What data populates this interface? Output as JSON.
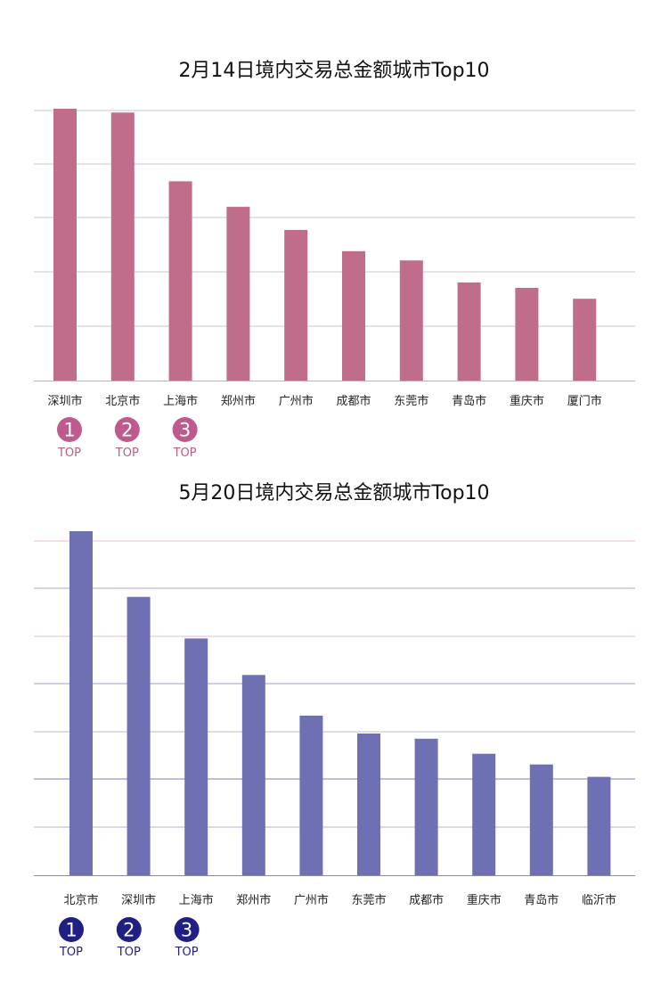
{
  "chart_data": [
    {
      "type": "bar",
      "title": "2月14日境内交易总金额城市Top10",
      "categories": [
        "深圳市",
        "北京市",
        "上海市",
        "郑州市",
        "广州市",
        "成都市",
        "东莞市",
        "青岛市",
        "重庆市",
        "厦门市"
      ],
      "values": [
        100,
        98.6,
        73.3,
        63.9,
        55.4,
        47.6,
        44.2,
        36.1,
        34.1,
        30.1
      ],
      "ylim": [
        0,
        100
      ],
      "grid": true,
      "color": "#bf6d8b",
      "top_badges": [
        {
          "rank": "1",
          "label": "TOP"
        },
        {
          "rank": "2",
          "label": "TOP"
        },
        {
          "rank": "3",
          "label": "TOP"
        }
      ],
      "badge_color": "#bf5a8c"
    },
    {
      "type": "bar",
      "title": "5月20日境内交易总金额城市Top10",
      "categories": [
        "北京市",
        "深圳市",
        "上海市",
        "郑州市",
        "广州市",
        "东莞市",
        "成都市",
        "重庆市",
        "青岛市",
        "临沂市"
      ],
      "values": [
        100,
        80.9,
        68.8,
        58.2,
        46.4,
        41.2,
        39.7,
        35.3,
        32.2,
        28.6
      ],
      "ylim": [
        0,
        100
      ],
      "grid": true,
      "color": "#6e70b3",
      "top_badges": [
        {
          "rank": "1",
          "label": "TOP"
        },
        {
          "rank": "2",
          "label": "TOP"
        },
        {
          "rank": "3",
          "label": "TOP"
        }
      ],
      "badge_color": "#1f1f84"
    }
  ]
}
